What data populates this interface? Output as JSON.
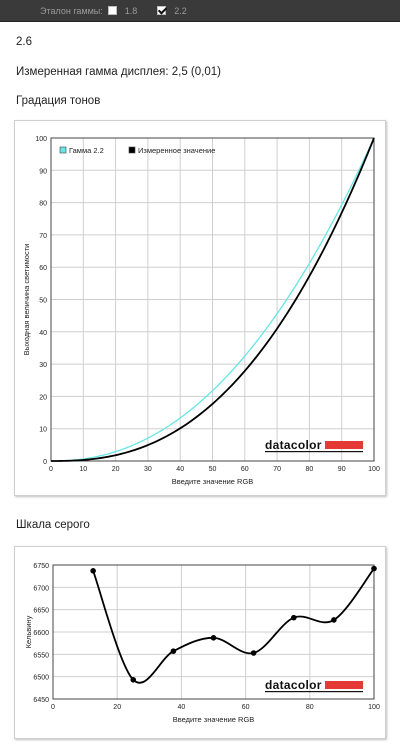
{
  "topbar": {
    "gamma_label": "Эталон гаммы:",
    "options": [
      {
        "label": "1.8",
        "checked": false
      },
      {
        "label": "2.2",
        "checked": true
      }
    ]
  },
  "gamma_value": "2.6",
  "measured_text": "Измеренная гамма дисплея: 2,5 (0,01)",
  "section1_title": "Градация тонов",
  "section2_title": "Шкала серого",
  "brand": "datacolor",
  "colors": {
    "reference": "#66e6e6",
    "measured": "#000000",
    "brand_bar": "#e53935"
  },
  "chart_data": [
    {
      "type": "line",
      "xlabel": "Введите значение RGB",
      "ylabel": "Выходная величина светимости",
      "xlim": [
        0,
        100
      ],
      "ylim": [
        0,
        100
      ],
      "xticks": [
        0,
        10,
        20,
        30,
        40,
        50,
        60,
        70,
        80,
        90,
        100
      ],
      "yticks": [
        0,
        10,
        20,
        30,
        40,
        50,
        60,
        70,
        80,
        90,
        100
      ],
      "grid": true,
      "legend": "top-left",
      "series": [
        {
          "name": "Гамма 2.2",
          "gamma": 2.2,
          "color": "#66e6e6"
        },
        {
          "name": "Измеренное значение",
          "gamma": 2.5,
          "color": "#000000"
        }
      ]
    },
    {
      "type": "line",
      "xlabel": "Введите значение RGB",
      "ylabel": "Кельвину",
      "xlim": [
        0,
        100
      ],
      "ylim": [
        6450,
        6750
      ],
      "xticks": [
        0,
        20,
        40,
        60,
        80,
        100
      ],
      "yticks": [
        6450,
        6500,
        6550,
        6600,
        6650,
        6700,
        6750
      ],
      "grid": true,
      "x": [
        12.5,
        25,
        37.5,
        50,
        62.5,
        75,
        87.5,
        100
      ],
      "values": [
        6737,
        6493,
        6557,
        6587,
        6553,
        6632,
        6627,
        6742
      ]
    }
  ]
}
